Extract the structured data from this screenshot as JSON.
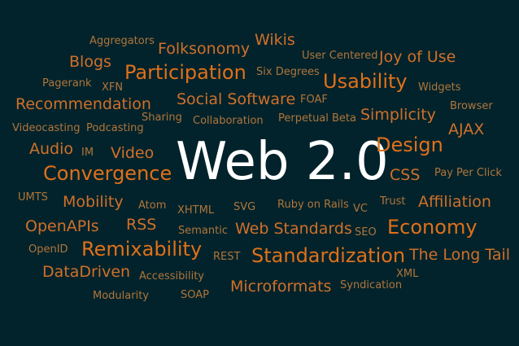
{
  "cloud": {
    "title": "Web 2.0",
    "words": [
      "Aggregators",
      "Folksonomy",
      "Wikis",
      "User Centered",
      "Joy of Use",
      "Blogs",
      "Participation",
      "Six Degrees",
      "Pagerank",
      "XFN",
      "Usability",
      "Widgets",
      "Recommendation",
      "Social Software",
      "FOAF",
      "Browser",
      "Sharing",
      "Simplicity",
      "Videocasting",
      "Podcasting",
      "Collaboration",
      "Perpetual Beta",
      "AJAX",
      "Audio",
      "IM",
      "Video",
      "Design",
      "Convergence",
      "CSS",
      "Pay Per Click",
      "UMTS",
      "Mobility",
      "Atom",
      "XHTML",
      "SVG",
      "Ruby on Rails",
      "VC",
      "Trust",
      "Affiliation",
      "OpenAPIs",
      "RSS",
      "Semantic",
      "Web Standards",
      "SEO",
      "Economy",
      "OpenID",
      "Remixability",
      "REST",
      "Standardization",
      "The Long Tail",
      "DataDriven",
      "Accessibility",
      "XML",
      "Microformats",
      "Syndication",
      "Modularity",
      "SOAP"
    ]
  }
}
